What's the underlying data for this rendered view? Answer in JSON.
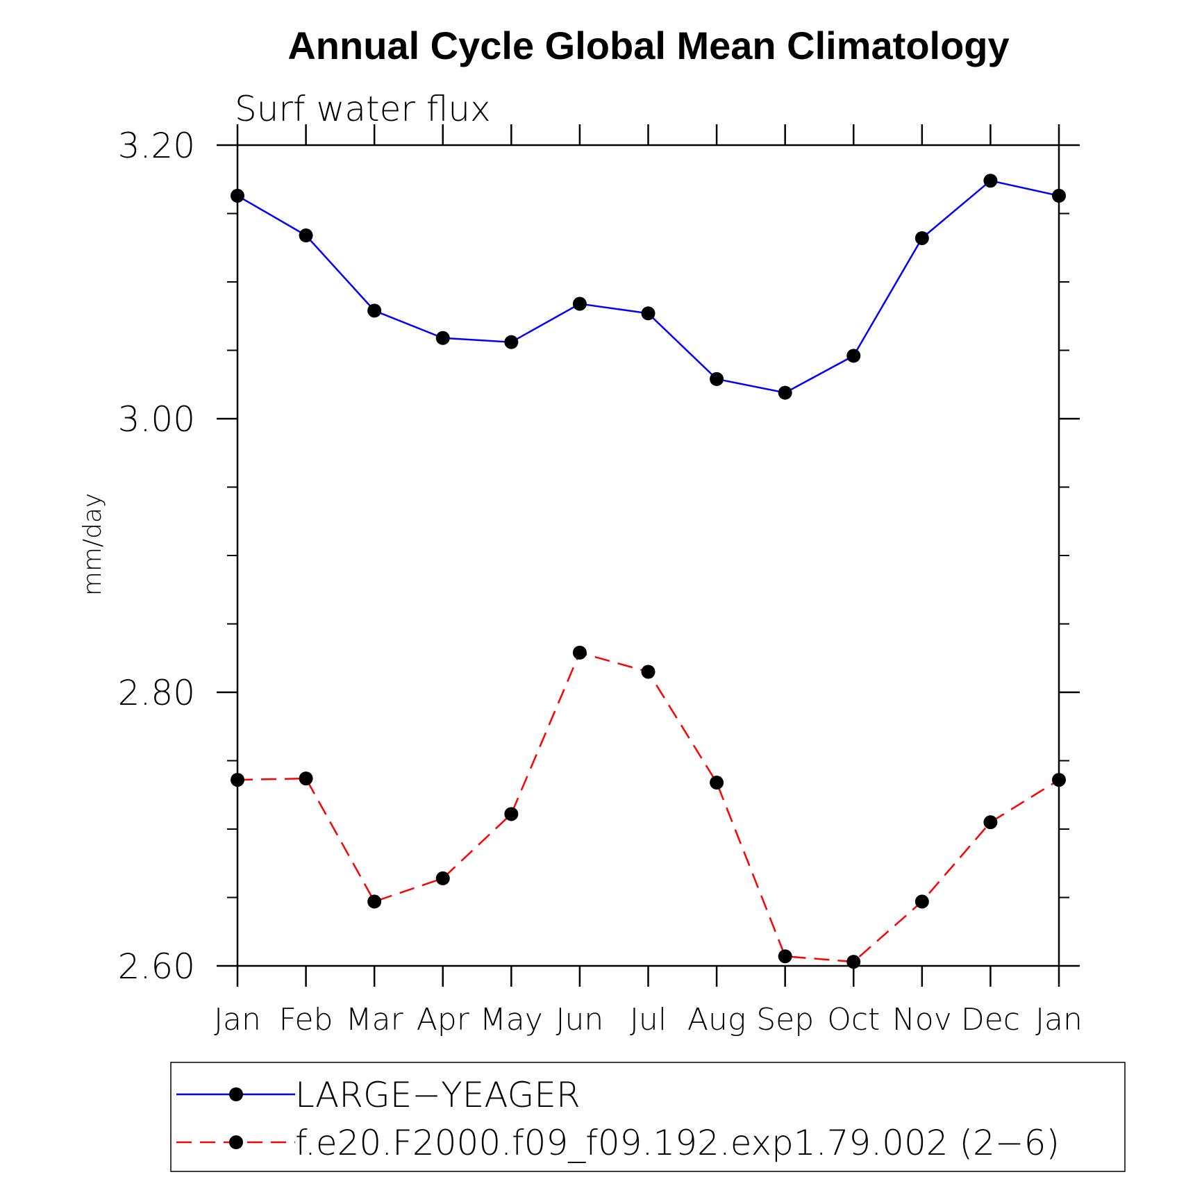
{
  "chart_data": {
    "type": "line",
    "title": "Annual Cycle Global Mean Climatology",
    "subtitle": "Surf  water  flux",
    "xlabel": "",
    "ylabel": "mm/day",
    "categories": [
      "Jan",
      "Feb",
      "Mar",
      "Apr",
      "May",
      "Jun",
      "Jul",
      "Aug",
      "Sep",
      "Oct",
      "Nov",
      "Dec",
      "Jan"
    ],
    "ylim": [
      2.6,
      3.2
    ],
    "yticks": [
      2.6,
      2.8,
      3.0,
      3.2
    ],
    "ytick_labels": [
      "2.60",
      "2.80",
      "3.00",
      "3.20"
    ],
    "yminor_step": 0.05,
    "grid": false,
    "legend_position": "bottom",
    "series": [
      {
        "name": "LARGE−YEAGER",
        "color": "#0000ff",
        "dash": "solid",
        "marker_color": "#000000",
        "values": [
          3.163,
          3.134,
          3.079,
          3.059,
          3.056,
          3.084,
          3.077,
          3.029,
          3.019,
          3.046,
          3.132,
          3.174,
          3.163
        ]
      },
      {
        "name": "f.e20.F2000.f09_f09.192.exp1.79.002 (2−6)",
        "color": "#ff0000",
        "dash": "dashed",
        "marker_color": "#000000",
        "values": [
          2.736,
          2.737,
          2.647,
          2.664,
          2.711,
          2.829,
          2.815,
          2.734,
          2.607,
          2.603,
          2.647,
          2.705,
          2.736
        ]
      }
    ]
  }
}
